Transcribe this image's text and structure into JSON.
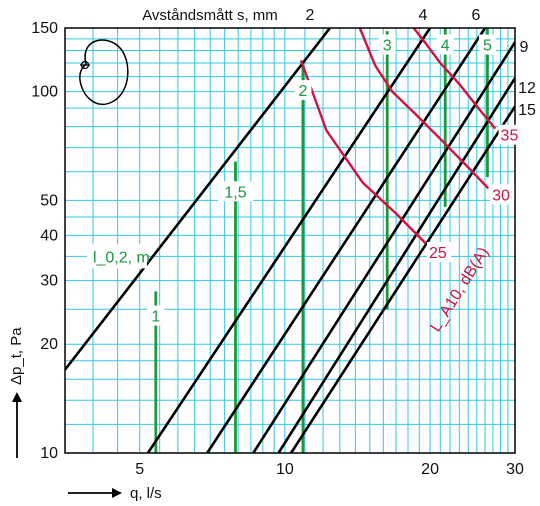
{
  "chart_data": {
    "type": "line",
    "top_axis_label": "Avståndsmått s, mm",
    "xlabel": "q, l/s",
    "ylabel": "Δp_t, Pa",
    "x_scale": "log",
    "y_scale": "log",
    "xlim": [
      3.5,
      30
    ],
    "ylim": [
      10,
      150
    ],
    "x_ticks": [
      5,
      10,
      20,
      30
    ],
    "y_ticks": [
      10,
      20,
      30,
      40,
      50,
      100,
      150
    ],
    "grid": true,
    "grid_color": "#33c9e6",
    "colors": {
      "black": "#000000",
      "green": "#1a9a3c",
      "red": "#d1123f"
    },
    "pressure_lines": [
      {
        "label": "2",
        "points": [
          [
            3.5,
            17
          ],
          [
            12.4,
            150
          ]
        ]
      },
      {
        "label": "4",
        "points": [
          [
            5.2,
            10
          ],
          [
            20.0,
            150
          ]
        ]
      },
      {
        "label": "6",
        "points": [
          [
            6.9,
            10
          ],
          [
            26.0,
            150
          ]
        ]
      },
      {
        "label": "9",
        "points": [
          [
            8.6,
            10
          ],
          [
            30.0,
            137
          ]
        ]
      },
      {
        "label": "12",
        "points": [
          [
            9.7,
            10
          ],
          [
            30.0,
            109
          ]
        ]
      },
      {
        "label": "15",
        "points": [
          [
            10.3,
            10
          ],
          [
            30.0,
            91
          ]
        ]
      }
    ],
    "throw_lines": {
      "title": "l_0,2, m",
      "lines": [
        {
          "label": "1",
          "q": 5.4,
          "range": [
            10,
            28
          ]
        },
        {
          "label": "1,5",
          "q": 7.9,
          "range": [
            10,
            64
          ]
        },
        {
          "label": "2",
          "q": 10.9,
          "range": [
            10,
            118
          ]
        },
        {
          "label": "3",
          "q": 16.3,
          "range": [
            25,
            147
          ]
        },
        {
          "label": "4",
          "q": 21.5,
          "range": [
            48,
            150
          ]
        },
        {
          "label": "5",
          "q": 26.3,
          "range": [
            58,
            150
          ]
        }
      ]
    },
    "sound_lines": {
      "title": "L_A10, dB(A)",
      "lines": [
        {
          "label": "25",
          "points": [
            [
              10.8,
              122
            ],
            [
              12.2,
              78
            ],
            [
              14.5,
              56
            ],
            [
              17.0,
              46
            ],
            [
              19.6,
              38
            ]
          ]
        },
        {
          "label": "30",
          "points": [
            [
              14.3,
              150
            ],
            [
              15.4,
              118
            ],
            [
              16.7,
              100
            ],
            [
              18.6,
              87
            ],
            [
              21.0,
              74
            ],
            [
              24.2,
              61
            ],
            [
              26.4,
              54
            ]
          ]
        },
        {
          "label": "35",
          "points": [
            [
              18.5,
              150
            ],
            [
              19.5,
              137
            ],
            [
              21.0,
              120
            ],
            [
              23.0,
              105
            ],
            [
              25.2,
              90
            ],
            [
              27.3,
              79
            ]
          ]
        }
      ]
    }
  }
}
